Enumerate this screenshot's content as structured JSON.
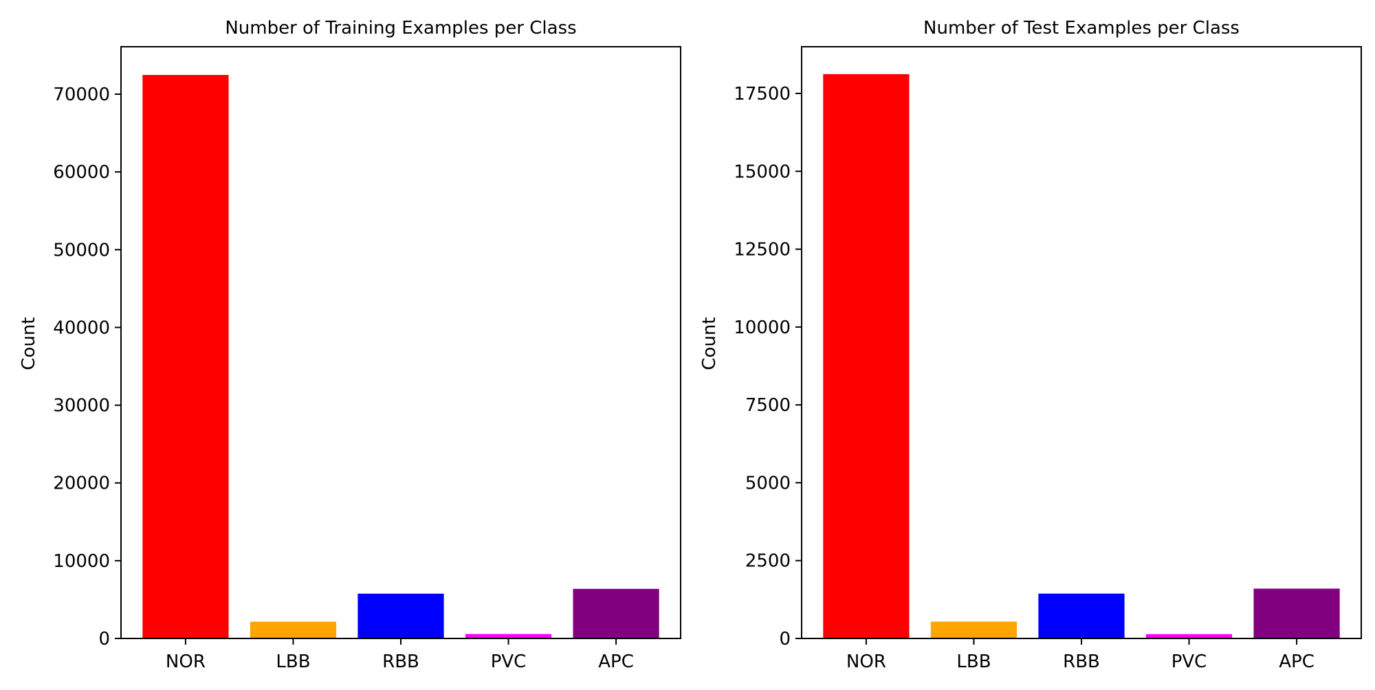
{
  "chart_data": [
    {
      "type": "bar",
      "title": "Number of Training Examples per Class",
      "xlabel": "",
      "ylabel": "Count",
      "categories": [
        "NOR",
        "LBB",
        "RBB",
        "PVC",
        "APC"
      ],
      "values": [
        72470,
        2160,
        5760,
        570,
        6380
      ],
      "colors": [
        "#ff0000",
        "#ffa500",
        "#0000ff",
        "#ff00ff",
        "#800080"
      ],
      "ylim": [
        0,
        76100
      ],
      "yticks": [
        0,
        10000,
        20000,
        30000,
        40000,
        50000,
        60000,
        70000
      ],
      "ytick_labels": [
        "0",
        "10000",
        "20000",
        "30000",
        "40000",
        "50000",
        "60000",
        "70000"
      ]
    },
    {
      "type": "bar",
      "title": "Number of Test Examples per Class",
      "xlabel": "",
      "ylabel": "Count",
      "categories": [
        "NOR",
        "LBB",
        "RBB",
        "PVC",
        "APC"
      ],
      "values": [
        18120,
        540,
        1440,
        140,
        1600
      ],
      "colors": [
        "#ff0000",
        "#ffa500",
        "#0000ff",
        "#ff00ff",
        "#800080"
      ],
      "ylim": [
        0,
        19000
      ],
      "yticks": [
        0,
        2500,
        5000,
        7500,
        10000,
        12500,
        15000,
        17500
      ],
      "ytick_labels": [
        "0",
        "2500",
        "5000",
        "7500",
        "10000",
        "12500",
        "15000",
        "17500"
      ]
    }
  ]
}
